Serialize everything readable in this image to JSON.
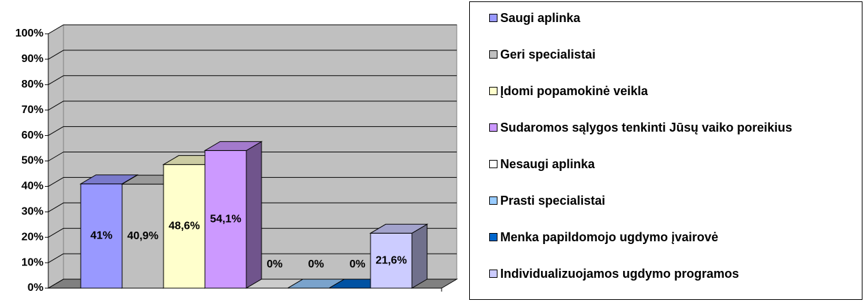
{
  "chart_data": {
    "type": "bar3d",
    "categories": [
      null
    ],
    "series": [
      {
        "name": "Saugi aplinka",
        "color": "#9999ff",
        "values": [
          41
        ],
        "value_labels": [
          "41%"
        ]
      },
      {
        "name": "Geri specialistai",
        "color": "#c0c0c0",
        "values": [
          40.9
        ],
        "value_labels": [
          "40,9%"
        ]
      },
      {
        "name": "Įdomi popamokinė veikla",
        "color": "#ffffcc",
        "values": [
          48.6
        ],
        "value_labels": [
          "48,6%"
        ]
      },
      {
        "name": "Sudaromos sąlygos tenkinti Jūsų vaiko poreikius",
        "color": "#cc99ff",
        "values": [
          54.1
        ],
        "value_labels": [
          "54,1%"
        ]
      },
      {
        "name": "Nesaugi aplinka",
        "color": "#ffffff",
        "values": [
          0
        ],
        "value_labels": [
          "0%"
        ]
      },
      {
        "name": "Prasti specialistai",
        "color": "#99ccff",
        "values": [
          0
        ],
        "value_labels": [
          "0%"
        ]
      },
      {
        "name": "Menka papildomojo ugdymo įvairovė",
        "color": "#0066cc",
        "values": [
          0
        ],
        "value_labels": [
          "0%"
        ]
      },
      {
        "name": "Individualizuojamos ugdymo programos",
        "color": "#ccccff",
        "values": [
          21.6
        ],
        "value_labels": [
          "21,6%"
        ]
      }
    ],
    "ylim": [
      0,
      100
    ],
    "yticks": [
      {
        "value": 0,
        "label": "0%"
      },
      {
        "value": 10,
        "label": "10%"
      },
      {
        "value": 20,
        "label": "20%"
      },
      {
        "value": 30,
        "label": "30%"
      },
      {
        "value": 40,
        "label": "40%"
      },
      {
        "value": 50,
        "label": "50%"
      },
      {
        "value": 60,
        "label": "60%"
      },
      {
        "value": 70,
        "label": "70%"
      },
      {
        "value": 80,
        "label": "80%"
      },
      {
        "value": 90,
        "label": "90%"
      },
      {
        "value": 100,
        "label": "100%"
      }
    ],
    "grid": true,
    "legend": "right"
  }
}
